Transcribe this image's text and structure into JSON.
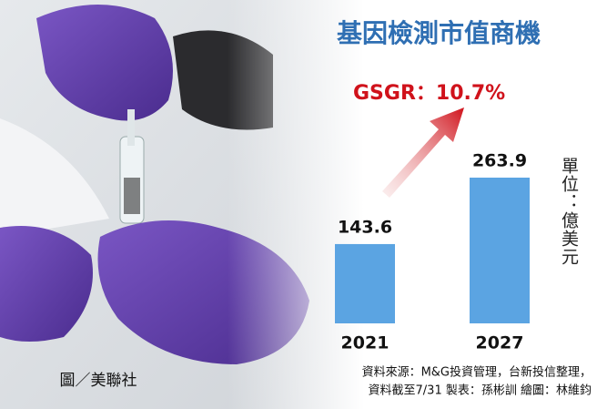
{
  "chart_data": {
    "type": "bar",
    "title": "基因檢測市值商機",
    "annotation": "GSGR：10.7%",
    "categories": [
      "2021",
      "2027"
    ],
    "values": [
      143.6,
      263.9
    ],
    "color": "#5ba4e2",
    "unit": "單位：億美元",
    "credit": "圖／美聯社",
    "source": [
      "資料來源：M&G投資管理，台新投信整理，",
      "資料截至7/31  製表：孫彬訓  繪圖：林維鈞"
    ]
  }
}
